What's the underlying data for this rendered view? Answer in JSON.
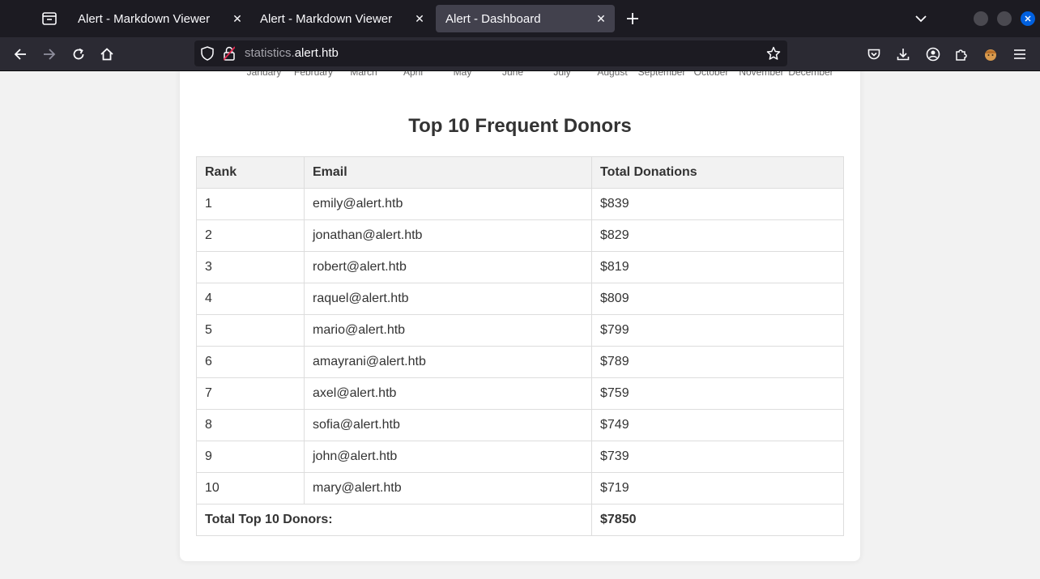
{
  "browser": {
    "tabs": [
      {
        "title": "Alert - Markdown Viewer",
        "active": false
      },
      {
        "title": "Alert - Markdown Viewer",
        "active": false
      },
      {
        "title": "Alert - Dashboard",
        "active": true
      }
    ],
    "url": {
      "subdomain": "statistics.",
      "domain": "alert.htb"
    },
    "colors": {
      "chrome_bg": "#1c1b22",
      "toolbar_bg": "#2b2a33",
      "active_tab": "#42414d",
      "close_button": "#0060df"
    }
  },
  "chart_axis": {
    "months": [
      "January",
      "February",
      "March",
      "April",
      "May",
      "June",
      "July",
      "August",
      "September",
      "October",
      "November",
      "December"
    ]
  },
  "donors": {
    "title": "Top 10 Frequent Donors",
    "columns": {
      "rank": "Rank",
      "email": "Email",
      "total": "Total Donations"
    },
    "rows": [
      {
        "rank": "1",
        "email": "emily@alert.htb",
        "total": "$839"
      },
      {
        "rank": "2",
        "email": "jonathan@alert.htb",
        "total": "$829"
      },
      {
        "rank": "3",
        "email": "robert@alert.htb",
        "total": "$819"
      },
      {
        "rank": "4",
        "email": "raquel@alert.htb",
        "total": "$809"
      },
      {
        "rank": "5",
        "email": "mario@alert.htb",
        "total": "$799"
      },
      {
        "rank": "6",
        "email": "amayrani@alert.htb",
        "total": "$789"
      },
      {
        "rank": "7",
        "email": "axel@alert.htb",
        "total": "$759"
      },
      {
        "rank": "8",
        "email": "sofia@alert.htb",
        "total": "$749"
      },
      {
        "rank": "9",
        "email": "john@alert.htb",
        "total": "$739"
      },
      {
        "rank": "10",
        "email": "mary@alert.htb",
        "total": "$719"
      }
    ],
    "footer": {
      "label": "Total Top 10 Donors:",
      "value": "$7850"
    }
  }
}
